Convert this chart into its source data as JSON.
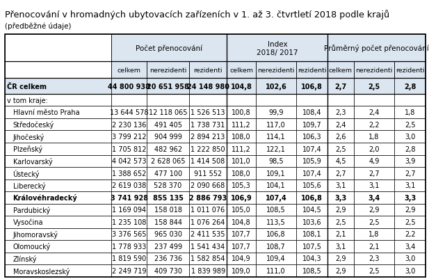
{
  "title": "Přenocování v hromadných ubytovacích zařízeních v 1. až 3. čtvrtletí 2018 podle krajů",
  "subtitle": "(předběžné údaje)",
  "col_groups": [
    {
      "label": "Počet přenocování"
    },
    {
      "label": "Index\n2018/ 2017"
    },
    {
      "label": "Průměrný počet přenocování"
    }
  ],
  "sub_labels": [
    "celkem",
    "nerezidenti",
    "rezidenti",
    "celkem",
    "nerezidenti",
    "rezidenti",
    "celkem",
    "nerezidenti",
    "rezidenti"
  ],
  "rows": [
    {
      "label": "ČR celkem",
      "bold": true,
      "cr": true,
      "indent": false,
      "values": [
        "44 800 938",
        "20 651 958",
        "24 148 980",
        "104,8",
        "102,6",
        "106,8",
        "2,7",
        "2,5",
        "2,8"
      ]
    },
    {
      "label": "v tom kraje:",
      "bold": false,
      "cr": false,
      "indent": false,
      "header_only": true,
      "values": [
        "",
        "",
        "",
        "",
        "",
        "",
        "",
        "",
        ""
      ]
    },
    {
      "label": "Hlavní město Praha",
      "bold": false,
      "cr": false,
      "indent": true,
      "values": [
        "13 644 578",
        "12 118 065",
        "1 526 513",
        "100,8",
        "99,9",
        "108,4",
        "2,3",
        "2,4",
        "1,8"
      ]
    },
    {
      "label": "Středočeský",
      "bold": false,
      "cr": false,
      "indent": true,
      "values": [
        "2 230 136",
        "491 405",
        "1 738 731",
        "111,2",
        "117,0",
        "109,7",
        "2,4",
        "2,2",
        "2,5"
      ]
    },
    {
      "label": "Jihočeský",
      "bold": false,
      "cr": false,
      "indent": true,
      "values": [
        "3 799 212",
        "904 999",
        "2 894 213",
        "108,0",
        "114,1",
        "106,3",
        "2,6",
        "1,8",
        "3,0"
      ]
    },
    {
      "label": "Plzeňský",
      "bold": false,
      "cr": false,
      "indent": true,
      "values": [
        "1 705 812",
        "482 962",
        "1 222 850",
        "111,2",
        "122,1",
        "107,4",
        "2,5",
        "2,0",
        "2,8"
      ]
    },
    {
      "label": "Karlovarský",
      "bold": false,
      "cr": false,
      "indent": true,
      "values": [
        "4 042 573",
        "2 628 065",
        "1 414 508",
        "101,0",
        "98,5",
        "105,9",
        "4,5",
        "4,9",
        "3,9"
      ]
    },
    {
      "label": "Ústecký",
      "bold": false,
      "cr": false,
      "indent": true,
      "values": [
        "1 388 652",
        "477 100",
        "911 552",
        "108,0",
        "109,1",
        "107,4",
        "2,7",
        "2,7",
        "2,7"
      ]
    },
    {
      "label": "Liberecký",
      "bold": false,
      "cr": false,
      "indent": true,
      "values": [
        "2 619 038",
        "528 370",
        "2 090 668",
        "105,3",
        "104,1",
        "105,6",
        "3,1",
        "3,1",
        "3,1"
      ]
    },
    {
      "label": "Královéhradecký",
      "bold": true,
      "cr": false,
      "indent": true,
      "values": [
        "3 741 928",
        "855 135",
        "2 886 793",
        "106,9",
        "107,4",
        "106,8",
        "3,3",
        "3,4",
        "3,3"
      ]
    },
    {
      "label": "Pardubický",
      "bold": false,
      "cr": false,
      "indent": true,
      "values": [
        "1 169 094",
        "158 018",
        "1 011 076",
        "105,0",
        "108,5",
        "104,5",
        "2,9",
        "2,9",
        "2,9"
      ]
    },
    {
      "label": "Vysočina",
      "bold": false,
      "cr": false,
      "indent": true,
      "values": [
        "1 235 108",
        "158 844",
        "1 076 264",
        "104,8",
        "113,5",
        "103,6",
        "2,5",
        "2,5",
        "2,5"
      ]
    },
    {
      "label": "Jihomoravský",
      "bold": false,
      "cr": false,
      "indent": true,
      "values": [
        "3 376 565",
        "965 030",
        "2 411 535",
        "107,7",
        "106,8",
        "108,1",
        "2,1",
        "1,8",
        "2,2"
      ]
    },
    {
      "label": "Olomoucký",
      "bold": false,
      "cr": false,
      "indent": true,
      "values": [
        "1 778 933",
        "237 499",
        "1 541 434",
        "107,7",
        "108,7",
        "107,5",
        "3,1",
        "2,1",
        "3,4"
      ]
    },
    {
      "label": "Zlínský",
      "bold": false,
      "cr": false,
      "indent": true,
      "values": [
        "1 819 590",
        "236 736",
        "1 582 854",
        "104,9",
        "109,4",
        "104,3",
        "2,9",
        "2,3",
        "3,0"
      ]
    },
    {
      "label": "Moravskoslezský",
      "bold": false,
      "cr": false,
      "indent": true,
      "values": [
        "2 249 719",
        "409 730",
        "1 839 989",
        "109,0",
        "111,0",
        "108,5",
        "2,9",
        "2,5",
        "3,0"
      ]
    }
  ],
  "header_bg": "#dce6f1",
  "cr_bg": "#dce6f1",
  "white_bg": "#ffffff",
  "font_size": 7.0,
  "title_font_size": 9.2,
  "subtitle_font_size": 7.5
}
